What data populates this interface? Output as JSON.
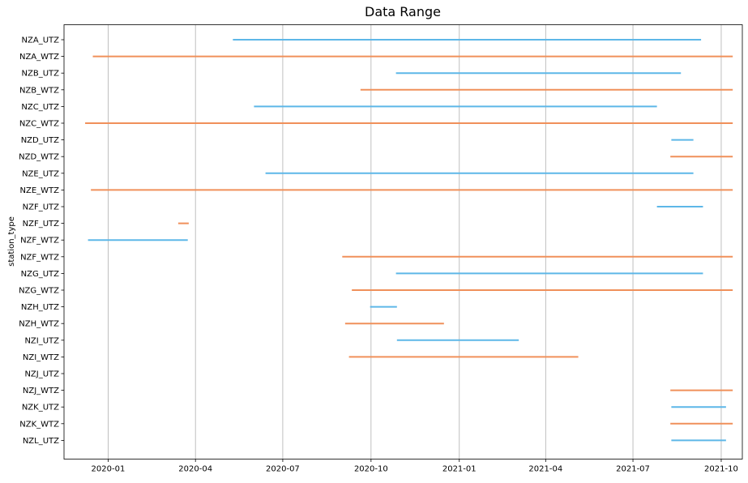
{
  "chart_data": {
    "type": "range",
    "title": "Data Range",
    "xlabel": "",
    "ylabel": "station_type",
    "grid": "vertical",
    "x_axis": {
      "type": "date",
      "lim": [
        "2019-11-16",
        "2021-10-23"
      ],
      "tick_values": [
        "2020-01-01",
        "2020-04-01",
        "2020-07-01",
        "2020-10-01",
        "2021-01-01",
        "2021-04-01",
        "2021-07-01",
        "2021-10-01"
      ],
      "tick_labels": [
        "2020-01",
        "2020-04",
        "2020-07",
        "2020-10",
        "2021-01",
        "2021-04",
        "2021-07",
        "2021-10"
      ]
    },
    "colors": {
      "UTZ": "#5DB7E8",
      "WTZ": "#F0905A"
    },
    "categories": [
      "NZA_UTZ",
      "NZA_WTZ",
      "NZB_UTZ",
      "NZB_WTZ",
      "NZC_UTZ",
      "NZC_WTZ",
      "NZD_UTZ",
      "NZD_WTZ",
      "NZE_UTZ",
      "NZE_WTZ",
      "NZF_UTZ",
      "NZF_UTZ",
      "NZF_WTZ",
      "NZF_WTZ",
      "NZG_UTZ",
      "NZG_WTZ",
      "NZH_UTZ",
      "NZH_WTZ",
      "NZI_UTZ",
      "NZI_WTZ",
      "NZJ_UTZ",
      "NZJ_WTZ",
      "NZK_UTZ",
      "NZK_WTZ",
      "NZL_UTZ"
    ],
    "ranges": [
      {
        "label": "NZA_UTZ",
        "start": "2020-05-10",
        "end": "2021-09-10",
        "color": "#5DB7E8"
      },
      {
        "label": "NZA_WTZ",
        "start": "2019-12-16",
        "end": "2021-10-13",
        "color": "#F0905A"
      },
      {
        "label": "NZB_UTZ",
        "start": "2020-10-27",
        "end": "2021-08-20",
        "color": "#5DB7E8"
      },
      {
        "label": "NZB_WTZ",
        "start": "2020-09-20",
        "end": "2021-10-13",
        "color": "#F0905A"
      },
      {
        "label": "NZC_UTZ",
        "start": "2020-06-01",
        "end": "2021-07-26",
        "color": "#5DB7E8"
      },
      {
        "label": "NZC_WTZ",
        "start": "2019-12-08",
        "end": "2021-10-13",
        "color": "#F0905A"
      },
      {
        "label": "NZD_UTZ",
        "start": "2021-08-10",
        "end": "2021-09-02",
        "color": "#5DB7E8"
      },
      {
        "label": "NZD_WTZ",
        "start": "2021-08-09",
        "end": "2021-10-13",
        "color": "#F0905A"
      },
      {
        "label": "NZE_UTZ",
        "start": "2020-06-13",
        "end": "2021-09-02",
        "color": "#5DB7E8"
      },
      {
        "label": "NZE_WTZ",
        "start": "2019-12-14",
        "end": "2021-10-13",
        "color": "#F0905A"
      },
      {
        "label": "NZF_UTZ",
        "start": "2021-07-26",
        "end": "2021-09-12",
        "color": "#5DB7E8"
      },
      {
        "label": "NZF_UTZ",
        "start": "2020-03-14",
        "end": "2020-03-25",
        "color": "#F0905A"
      },
      {
        "label": "NZF_WTZ",
        "start": "2019-12-11",
        "end": "2020-03-24",
        "color": "#5DB7E8"
      },
      {
        "label": "NZF_WTZ",
        "start": "2020-09-01",
        "end": "2021-10-13",
        "color": "#F0905A"
      },
      {
        "label": "NZG_UTZ",
        "start": "2020-10-27",
        "end": "2021-09-12",
        "color": "#5DB7E8"
      },
      {
        "label": "NZG_WTZ",
        "start": "2020-09-11",
        "end": "2021-10-13",
        "color": "#F0905A"
      },
      {
        "label": "NZH_UTZ",
        "start": "2020-09-30",
        "end": "2020-10-28",
        "color": "#5DB7E8"
      },
      {
        "label": "NZH_WTZ",
        "start": "2020-09-04",
        "end": "2020-12-16",
        "color": "#F0905A"
      },
      {
        "label": "NZI_UTZ",
        "start": "2020-10-28",
        "end": "2021-03-04",
        "color": "#5DB7E8"
      },
      {
        "label": "NZI_WTZ",
        "start": "2020-09-08",
        "end": "2021-05-05",
        "color": "#F0905A"
      },
      {
        "label": "NZJ_WTZ",
        "start": "2021-08-09",
        "end": "2021-10-13",
        "color": "#F0905A"
      },
      {
        "label": "NZK_UTZ",
        "start": "2021-08-10",
        "end": "2021-10-06",
        "color": "#5DB7E8"
      },
      {
        "label": "NZK_WTZ",
        "start": "2021-08-09",
        "end": "2021-10-13",
        "color": "#F0905A"
      },
      {
        "label": "NZL_UTZ",
        "start": "2021-08-10",
        "end": "2021-10-06",
        "color": "#5DB7E8"
      }
    ]
  }
}
